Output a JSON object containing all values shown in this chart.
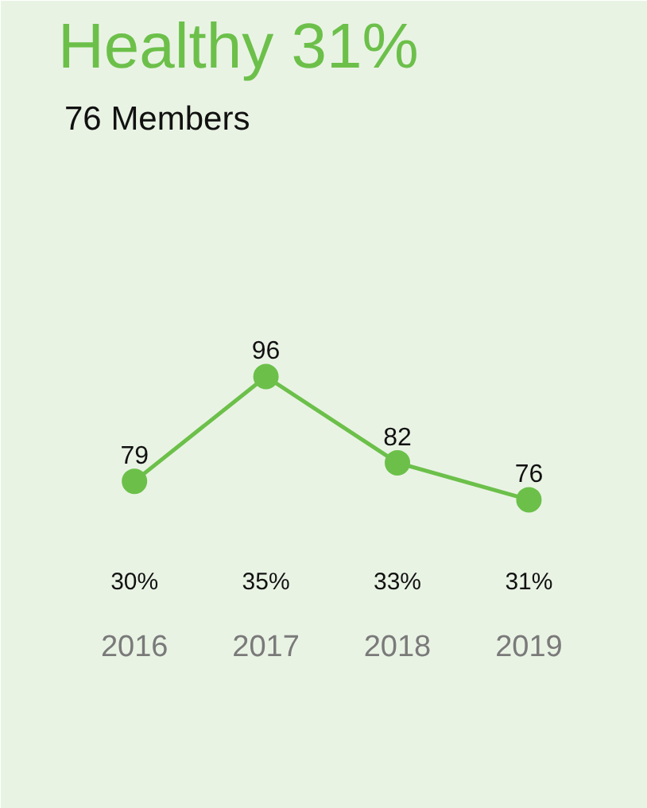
{
  "chart_data": {
    "type": "line",
    "title": "Healthy 31%",
    "subtitle": "76 Members",
    "categories": [
      "2016",
      "2017",
      "2018",
      "2019"
    ],
    "series": [
      {
        "color": "#6cc04a",
        "values": [
          79,
          96,
          82,
          76
        ]
      }
    ],
    "data_labels": true,
    "marker": "circle",
    "line_style": "solid",
    "grid": false,
    "annotations": [
      "30%",
      "35%",
      "33%",
      "31%"
    ]
  }
}
